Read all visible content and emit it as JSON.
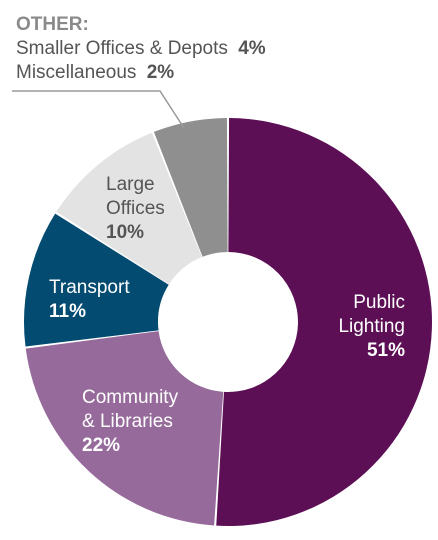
{
  "chart_data": {
    "type": "pie",
    "donut": true,
    "title": "",
    "slices": [
      {
        "label_lines": [
          "Public",
          "Lighting"
        ],
        "value": 51,
        "value_label": "51%",
        "color": "#5c0f55",
        "text_color": "#ffffff"
      },
      {
        "label_lines": [
          "Community",
          "& Libraries"
        ],
        "value": 22,
        "value_label": "22%",
        "color": "#966b9b",
        "text_color": "#ffffff"
      },
      {
        "label_lines": [
          "Transport"
        ],
        "value": 11,
        "value_label": "11%",
        "color": "#034b70",
        "text_color": "#ffffff"
      },
      {
        "label_lines": [
          "Large",
          "Offices"
        ],
        "value": 10,
        "value_label": "10%",
        "color": "#e3e3e3",
        "text_color": "#555555"
      },
      {
        "label_lines": [],
        "value": 6,
        "value_label": "",
        "color": "#8f8f8f",
        "text_color": "#ffffff"
      }
    ],
    "other": {
      "title": "OTHER:",
      "items": [
        {
          "label": "Smaller Offices & Depots",
          "value": 4,
          "value_label": "4%"
        },
        {
          "label": "Miscellaneous",
          "value": 2,
          "value_label": "2%"
        }
      ]
    },
    "legend": "none"
  }
}
